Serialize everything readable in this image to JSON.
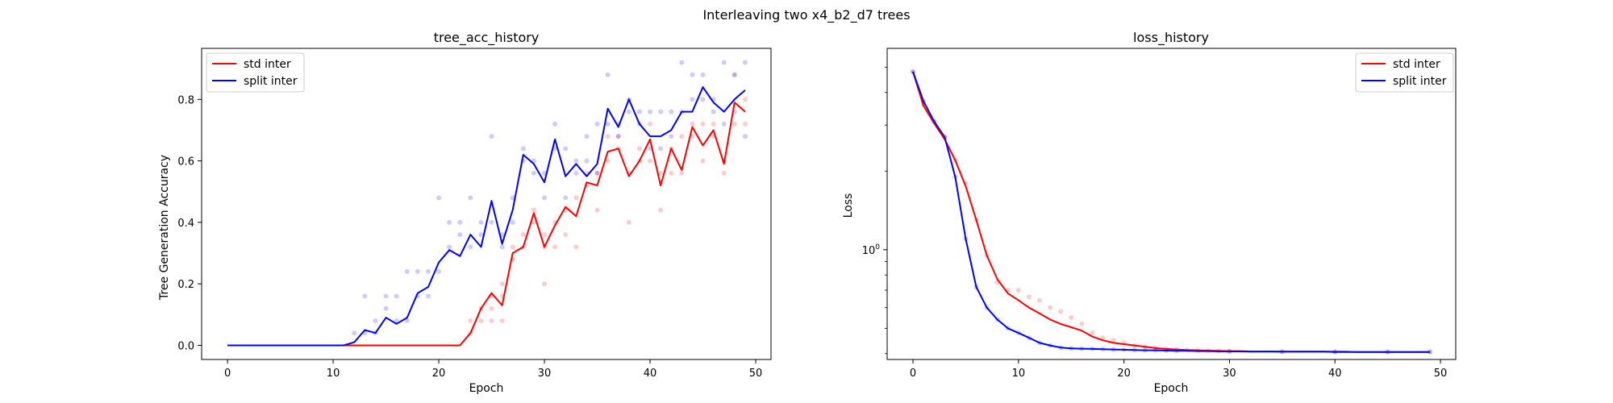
{
  "figure": {
    "suptitle": "Interleaving two x4_b2_d7 trees"
  },
  "colors": {
    "std": "#ff0000",
    "split": "#0000ff",
    "std_scatter": "#ffb3b3",
    "split_scatter": "#b3b3ff"
  },
  "chart_data": [
    {
      "type": "line",
      "title": "tree_acc_history",
      "xlabel": "Epoch",
      "ylabel": "Tree Generation Accuracy",
      "xlim": [
        -2.45,
        51.45
      ],
      "ylim": [
        -0.046,
        0.966
      ],
      "xticks": [
        0,
        10,
        20,
        30,
        40,
        50
      ],
      "yticks": [
        0.0,
        0.2,
        0.4,
        0.6,
        0.8
      ],
      "xtick_labels": [
        "0",
        "10",
        "20",
        "30",
        "40",
        "50"
      ],
      "ytick_labels": [
        "0.0",
        "0.2",
        "0.4",
        "0.6",
        "0.8"
      ],
      "legend_position": "upper-left",
      "legend_entries": [
        "std inter",
        "split inter"
      ],
      "x": [
        0,
        1,
        2,
        3,
        4,
        5,
        6,
        7,
        8,
        9,
        10,
        11,
        12,
        13,
        14,
        15,
        16,
        17,
        18,
        19,
        20,
        21,
        22,
        23,
        24,
        25,
        26,
        27,
        28,
        29,
        30,
        31,
        32,
        33,
        34,
        35,
        36,
        37,
        38,
        39,
        40,
        41,
        42,
        43,
        44,
        45,
        46,
        47,
        48,
        49
      ],
      "series": [
        {
          "name": "std inter",
          "color": "#ff0000",
          "values": [
            0,
            0,
            0,
            0,
            0,
            0,
            0,
            0,
            0,
            0,
            0,
            0,
            0,
            0,
            0,
            0,
            0,
            0,
            0,
            0,
            0,
            0,
            0,
            0.04,
            0.12,
            0.17,
            0.13,
            0.3,
            0.32,
            0.43,
            0.32,
            0.39,
            0.45,
            0.42,
            0.53,
            0.52,
            0.63,
            0.64,
            0.55,
            0.6,
            0.67,
            0.52,
            0.64,
            0.57,
            0.71,
            0.65,
            0.7,
            0.59,
            0.79,
            0.76
          ]
        },
        {
          "name": "split inter",
          "color": "#0000ff",
          "values": [
            0,
            0,
            0,
            0,
            0,
            0,
            0,
            0,
            0,
            0,
            0,
            0,
            0.01,
            0.05,
            0.04,
            0.09,
            0.07,
            0.09,
            0.17,
            0.19,
            0.27,
            0.31,
            0.29,
            0.36,
            0.32,
            0.47,
            0.33,
            0.44,
            0.62,
            0.59,
            0.53,
            0.67,
            0.55,
            0.59,
            0.55,
            0.59,
            0.77,
            0.71,
            0.8,
            0.72,
            0.68,
            0.68,
            0.7,
            0.76,
            0.76,
            0.84,
            0.79,
            0.76,
            0.8,
            0.83
          ]
        }
      ],
      "scatter_std": [
        [
          23,
          0.08
        ],
        [
          23,
          0.04
        ],
        [
          24,
          0.12
        ],
        [
          24,
          0.08
        ],
        [
          25,
          0.16
        ],
        [
          25,
          0.12
        ],
        [
          25,
          0.08
        ],
        [
          26,
          0.2
        ],
        [
          26,
          0.16
        ],
        [
          26,
          0.08
        ],
        [
          27,
          0.32
        ],
        [
          27,
          0.28
        ],
        [
          28,
          0.36
        ],
        [
          28,
          0.32
        ],
        [
          29,
          0.44
        ],
        [
          29,
          0.4
        ],
        [
          30,
          0.2
        ],
        [
          30,
          0.32
        ],
        [
          30,
          0.36
        ],
        [
          31,
          0.4
        ],
        [
          31,
          0.32
        ],
        [
          32,
          0.44
        ],
        [
          32,
          0.36
        ],
        [
          33,
          0.48
        ],
        [
          33,
          0.32
        ],
        [
          34,
          0.56
        ],
        [
          34,
          0.52
        ],
        [
          35,
          0.44
        ],
        [
          35,
          0.56
        ],
        [
          36,
          0.68
        ],
        [
          36,
          0.6
        ],
        [
          37,
          0.64
        ],
        [
          37,
          0.68
        ],
        [
          38,
          0.4
        ],
        [
          38,
          0.56
        ],
        [
          39,
          0.6
        ],
        [
          39,
          0.64
        ],
        [
          40,
          0.72
        ],
        [
          40,
          0.6
        ],
        [
          41,
          0.44
        ],
        [
          41,
          0.56
        ],
        [
          42,
          0.64
        ],
        [
          42,
          0.56
        ],
        [
          43,
          0.68
        ],
        [
          43,
          0.56
        ],
        [
          44,
          0.68
        ],
        [
          44,
          0.72
        ],
        [
          45,
          0.6
        ],
        [
          45,
          0.72
        ],
        [
          46,
          0.68
        ],
        [
          46,
          0.72
        ],
        [
          47,
          0.56
        ],
        [
          47,
          0.6
        ],
        [
          48,
          0.88
        ],
        [
          48,
          0.72
        ],
        [
          49,
          0.8
        ],
        [
          49,
          0.72
        ]
      ],
      "scatter_split": [
        [
          12,
          0.04
        ],
        [
          13,
          0.16
        ],
        [
          13,
          0.04
        ],
        [
          14,
          0.08
        ],
        [
          14,
          0.04
        ],
        [
          15,
          0.16
        ],
        [
          15,
          0.12
        ],
        [
          16,
          0.16
        ],
        [
          16,
          0.08
        ],
        [
          17,
          0.24
        ],
        [
          17,
          0.08
        ],
        [
          18,
          0.24
        ],
        [
          18,
          0.16
        ],
        [
          19,
          0.16
        ],
        [
          19,
          0.24
        ],
        [
          20,
          0.48
        ],
        [
          20,
          0.24
        ],
        [
          21,
          0.4
        ],
        [
          21,
          0.32
        ],
        [
          22,
          0.4
        ],
        [
          22,
          0.36
        ],
        [
          23,
          0.48
        ],
        [
          23,
          0.32
        ],
        [
          24,
          0.4
        ],
        [
          24,
          0.36
        ],
        [
          25,
          0.68
        ],
        [
          25,
          0.4
        ],
        [
          26,
          0.36
        ],
        [
          26,
          0.32
        ],
        [
          27,
          0.48
        ],
        [
          27,
          0.4
        ],
        [
          28,
          0.64
        ],
        [
          28,
          0.6
        ],
        [
          29,
          0.6
        ],
        [
          29,
          0.56
        ],
        [
          30,
          0.56
        ],
        [
          30,
          0.48
        ],
        [
          31,
          0.72
        ],
        [
          31,
          0.64
        ],
        [
          32,
          0.64
        ],
        [
          32,
          0.48
        ],
        [
          33,
          0.6
        ],
        [
          33,
          0.56
        ],
        [
          34,
          0.68
        ],
        [
          34,
          0.6
        ],
        [
          35,
          0.72
        ],
        [
          35,
          0.56
        ],
        [
          36,
          0.88
        ],
        [
          36,
          0.72
        ],
        [
          37,
          0.72
        ],
        [
          37,
          0.68
        ],
        [
          38,
          0.8
        ],
        [
          38,
          0.76
        ],
        [
          39,
          0.76
        ],
        [
          39,
          0.72
        ],
        [
          40,
          0.76
        ],
        [
          40,
          0.64
        ],
        [
          41,
          0.76
        ],
        [
          41,
          0.64
        ],
        [
          42,
          0.76
        ],
        [
          42,
          0.68
        ],
        [
          43,
          0.92
        ],
        [
          43,
          0.76
        ],
        [
          44,
          0.88
        ],
        [
          44,
          0.8
        ],
        [
          45,
          0.88
        ],
        [
          45,
          0.8
        ],
        [
          46,
          0.8
        ],
        [
          46,
          0.76
        ],
        [
          47,
          0.92
        ],
        [
          47,
          0.72
        ],
        [
          48,
          0.88
        ],
        [
          48,
          0.76
        ],
        [
          49,
          0.92
        ],
        [
          49,
          0.68
        ]
      ]
    },
    {
      "type": "line",
      "title": "loss_history",
      "xlabel": "Epoch",
      "ylabel": "Loss",
      "yscale": "log",
      "xlim": [
        -2.45,
        51.45
      ],
      "ylim": [
        0.38,
        5.9
      ],
      "xticks": [
        0,
        10,
        20,
        30,
        40,
        50
      ],
      "xtick_labels": [
        "0",
        "10",
        "20",
        "30",
        "40",
        "50"
      ],
      "yticks": [
        1
      ],
      "ytick_base": "10",
      "ytick_exp": "0",
      "legend_position": "upper-right",
      "legend_entries": [
        "std inter",
        "split inter"
      ],
      "x": [
        0,
        1,
        2,
        3,
        4,
        5,
        6,
        7,
        8,
        9,
        10,
        11,
        12,
        13,
        14,
        15,
        16,
        17,
        18,
        19,
        20,
        21,
        22,
        23,
        24,
        25,
        26,
        27,
        28,
        29,
        30,
        31,
        32,
        33,
        34,
        35,
        36,
        37,
        38,
        39,
        40,
        41,
        42,
        43,
        44,
        45,
        46,
        47,
        48,
        49
      ],
      "series": [
        {
          "name": "std inter",
          "color": "#ff0000",
          "values": [
            4.8,
            3.55,
            3.05,
            2.65,
            2.2,
            1.75,
            1.3,
            0.95,
            0.77,
            0.68,
            0.64,
            0.6,
            0.57,
            0.54,
            0.52,
            0.505,
            0.49,
            0.465,
            0.45,
            0.44,
            0.435,
            0.43,
            0.425,
            0.42,
            0.417,
            0.415,
            0.413,
            0.412,
            0.411,
            0.41,
            0.409,
            0.409,
            0.408,
            0.408,
            0.408,
            0.407,
            0.407,
            0.407,
            0.407,
            0.407,
            0.407,
            0.407,
            0.406,
            0.406,
            0.406,
            0.406,
            0.406,
            0.406,
            0.406,
            0.406
          ]
        },
        {
          "name": "split inter",
          "color": "#0000ff",
          "values": [
            4.8,
            3.7,
            3.1,
            2.7,
            1.9,
            1.1,
            0.72,
            0.6,
            0.54,
            0.5,
            0.48,
            0.46,
            0.44,
            0.43,
            0.422,
            0.419,
            0.418,
            0.417,
            0.416,
            0.415,
            0.414,
            0.413,
            0.412,
            0.412,
            0.411,
            0.41,
            0.41,
            0.409,
            0.409,
            0.408,
            0.408,
            0.408,
            0.407,
            0.407,
            0.407,
            0.407,
            0.407,
            0.407,
            0.407,
            0.407,
            0.406,
            0.406,
            0.406,
            0.406,
            0.406,
            0.406,
            0.406,
            0.406,
            0.406,
            0.406
          ]
        }
      ],
      "scatter_std": [
        [
          0,
          4.8
        ],
        [
          1,
          3.6
        ],
        [
          2,
          3.1
        ],
        [
          3,
          2.7
        ],
        [
          4,
          2.2
        ],
        [
          5,
          1.8
        ],
        [
          6,
          1.3
        ],
        [
          7,
          0.95
        ],
        [
          8,
          0.75
        ],
        [
          9,
          0.7
        ],
        [
          10,
          0.7
        ],
        [
          11,
          0.66
        ],
        [
          12,
          0.64
        ],
        [
          13,
          0.6
        ],
        [
          14,
          0.58
        ],
        [
          15,
          0.55
        ],
        [
          16,
          0.52
        ],
        [
          17,
          0.48
        ],
        [
          18,
          0.46
        ],
        [
          19,
          0.45
        ],
        [
          20,
          0.44
        ],
        [
          21,
          0.43
        ],
        [
          22,
          0.425
        ],
        [
          23,
          0.42
        ],
        [
          24,
          0.417
        ],
        [
          25,
          0.415
        ],
        [
          26,
          0.413
        ],
        [
          27,
          0.412
        ],
        [
          28,
          0.411
        ],
        [
          29,
          0.41
        ],
        [
          30,
          0.409
        ],
        [
          35,
          0.407
        ],
        [
          40,
          0.407
        ],
        [
          45,
          0.406
        ],
        [
          49,
          0.406
        ]
      ],
      "scatter_split": [
        [
          0,
          4.8
        ],
        [
          1,
          3.7
        ],
        [
          2,
          3.1
        ],
        [
          3,
          2.7
        ],
        [
          4,
          1.9
        ],
        [
          5,
          1.1
        ],
        [
          6,
          0.72
        ],
        [
          7,
          0.6
        ],
        [
          8,
          0.54
        ],
        [
          9,
          0.5
        ],
        [
          10,
          0.48
        ],
        [
          11,
          0.46
        ],
        [
          12,
          0.44
        ],
        [
          13,
          0.43
        ],
        [
          14,
          0.422
        ],
        [
          15,
          0.419
        ],
        [
          16,
          0.418
        ],
        [
          17,
          0.417
        ],
        [
          18,
          0.416
        ],
        [
          19,
          0.415
        ],
        [
          20,
          0.414
        ],
        [
          21,
          0.413
        ],
        [
          22,
          0.412
        ],
        [
          23,
          0.412
        ],
        [
          24,
          0.411
        ],
        [
          25,
          0.41
        ],
        [
          30,
          0.408
        ],
        [
          35,
          0.407
        ],
        [
          40,
          0.406
        ],
        [
          45,
          0.406
        ],
        [
          49,
          0.406
        ]
      ]
    }
  ]
}
